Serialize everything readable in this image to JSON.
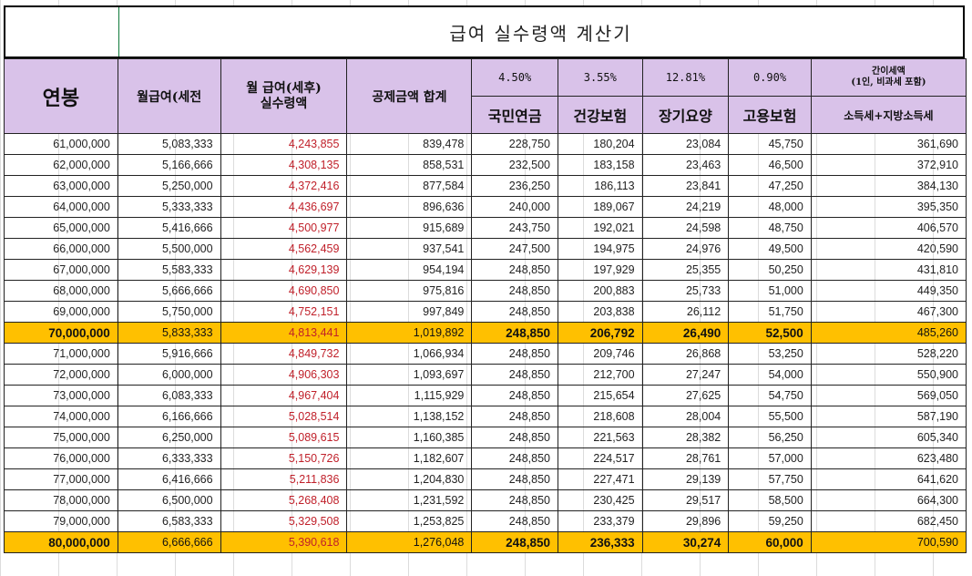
{
  "title": "급여 실수령액 계산기",
  "headers": {
    "annual": "연봉",
    "monthly_pre": "월급여(세전",
    "monthly_post_line1": "월 급여(세후)",
    "monthly_post_line2": "실수령액",
    "deductions": "공제금액 합계",
    "rates": [
      "4.50%",
      "3.55%",
      "12.81%",
      "0.90%"
    ],
    "categories": [
      "국민연금",
      "건강보험",
      "장기요양",
      "고용보험"
    ],
    "tax_top_line1": "간이세액",
    "tax_top_line2": "(1인, 비과세 포함)",
    "tax_bottom": "소득세+지방소득세"
  },
  "rows": [
    {
      "annual": "61,000,000",
      "monthly_pre": "5,083,333",
      "monthly_post": "4,243,855",
      "deductions": "839,478",
      "pension": "228,750",
      "health": "180,204",
      "ltc": "23,084",
      "employment": "45,750",
      "tax": "361,690"
    },
    {
      "annual": "62,000,000",
      "monthly_pre": "5,166,666",
      "monthly_post": "4,308,135",
      "deductions": "858,531",
      "pension": "232,500",
      "health": "183,158",
      "ltc": "23,463",
      "employment": "46,500",
      "tax": "372,910"
    },
    {
      "annual": "63,000,000",
      "monthly_pre": "5,250,000",
      "monthly_post": "4,372,416",
      "deductions": "877,584",
      "pension": "236,250",
      "health": "186,113",
      "ltc": "23,841",
      "employment": "47,250",
      "tax": "384,130"
    },
    {
      "annual": "64,000,000",
      "monthly_pre": "5,333,333",
      "monthly_post": "4,436,697",
      "deductions": "896,636",
      "pension": "240,000",
      "health": "189,067",
      "ltc": "24,219",
      "employment": "48,000",
      "tax": "395,350"
    },
    {
      "annual": "65,000,000",
      "monthly_pre": "5,416,666",
      "monthly_post": "4,500,977",
      "deductions": "915,689",
      "pension": "243,750",
      "health": "192,021",
      "ltc": "24,598",
      "employment": "48,750",
      "tax": "406,570"
    },
    {
      "annual": "66,000,000",
      "monthly_pre": "5,500,000",
      "monthly_post": "4,562,459",
      "deductions": "937,541",
      "pension": "247,500",
      "health": "194,975",
      "ltc": "24,976",
      "employment": "49,500",
      "tax": "420,590"
    },
    {
      "annual": "67,000,000",
      "monthly_pre": "5,583,333",
      "monthly_post": "4,629,139",
      "deductions": "954,194",
      "pension": "248,850",
      "health": "197,929",
      "ltc": "25,355",
      "employment": "50,250",
      "tax": "431,810"
    },
    {
      "annual": "68,000,000",
      "monthly_pre": "5,666,666",
      "monthly_post": "4,690,850",
      "deductions": "975,816",
      "pension": "248,850",
      "health": "200,883",
      "ltc": "25,733",
      "employment": "51,000",
      "tax": "449,350"
    },
    {
      "annual": "69,000,000",
      "monthly_pre": "5,750,000",
      "monthly_post": "4,752,151",
      "deductions": "997,849",
      "pension": "248,850",
      "health": "203,838",
      "ltc": "26,112",
      "employment": "51,750",
      "tax": "467,300"
    },
    {
      "annual": "70,000,000",
      "monthly_pre": "5,833,333",
      "monthly_post": "4,813,441",
      "deductions": "1,019,892",
      "pension": "248,850",
      "health": "206,792",
      "ltc": "26,490",
      "employment": "52,500",
      "tax": "485,260",
      "highlight": true
    },
    {
      "annual": "71,000,000",
      "monthly_pre": "5,916,666",
      "monthly_post": "4,849,732",
      "deductions": "1,066,934",
      "pension": "248,850",
      "health": "209,746",
      "ltc": "26,868",
      "employment": "53,250",
      "tax": "528,220"
    },
    {
      "annual": "72,000,000",
      "monthly_pre": "6,000,000",
      "monthly_post": "4,906,303",
      "deductions": "1,093,697",
      "pension": "248,850",
      "health": "212,700",
      "ltc": "27,247",
      "employment": "54,000",
      "tax": "550,900"
    },
    {
      "annual": "73,000,000",
      "monthly_pre": "6,083,333",
      "monthly_post": "4,967,404",
      "deductions": "1,115,929",
      "pension": "248,850",
      "health": "215,654",
      "ltc": "27,625",
      "employment": "54,750",
      "tax": "569,050"
    },
    {
      "annual": "74,000,000",
      "monthly_pre": "6,166,666",
      "monthly_post": "5,028,514",
      "deductions": "1,138,152",
      "pension": "248,850",
      "health": "218,608",
      "ltc": "28,004",
      "employment": "55,500",
      "tax": "587,190"
    },
    {
      "annual": "75,000,000",
      "monthly_pre": "6,250,000",
      "monthly_post": "5,089,615",
      "deductions": "1,160,385",
      "pension": "248,850",
      "health": "221,563",
      "ltc": "28,382",
      "employment": "56,250",
      "tax": "605,340"
    },
    {
      "annual": "76,000,000",
      "monthly_pre": "6,333,333",
      "monthly_post": "5,150,726",
      "deductions": "1,182,607",
      "pension": "248,850",
      "health": "224,517",
      "ltc": "28,761",
      "employment": "57,000",
      "tax": "623,480"
    },
    {
      "annual": "77,000,000",
      "monthly_pre": "6,416,666",
      "monthly_post": "5,211,836",
      "deductions": "1,204,830",
      "pension": "248,850",
      "health": "227,471",
      "ltc": "29,139",
      "employment": "57,750",
      "tax": "641,620"
    },
    {
      "annual": "78,000,000",
      "monthly_pre": "6,500,000",
      "monthly_post": "5,268,408",
      "deductions": "1,231,592",
      "pension": "248,850",
      "health": "230,425",
      "ltc": "29,517",
      "employment": "58,500",
      "tax": "664,300"
    },
    {
      "annual": "79,000,000",
      "monthly_pre": "6,583,333",
      "monthly_post": "5,329,508",
      "deductions": "1,253,825",
      "pension": "248,850",
      "health": "233,379",
      "ltc": "29,896",
      "employment": "59,250",
      "tax": "682,450"
    },
    {
      "annual": "80,000,000",
      "monthly_pre": "6,666,666",
      "monthly_post": "5,390,618",
      "deductions": "1,276,048",
      "pension": "248,850",
      "health": "236,333",
      "ltc": "30,274",
      "employment": "60,000",
      "tax": "700,590",
      "highlight": true
    }
  ],
  "colors": {
    "header_bg": "#d9c2e9",
    "highlight_bg": "#ffc000",
    "net_pay_text": "#c0202a"
  }
}
